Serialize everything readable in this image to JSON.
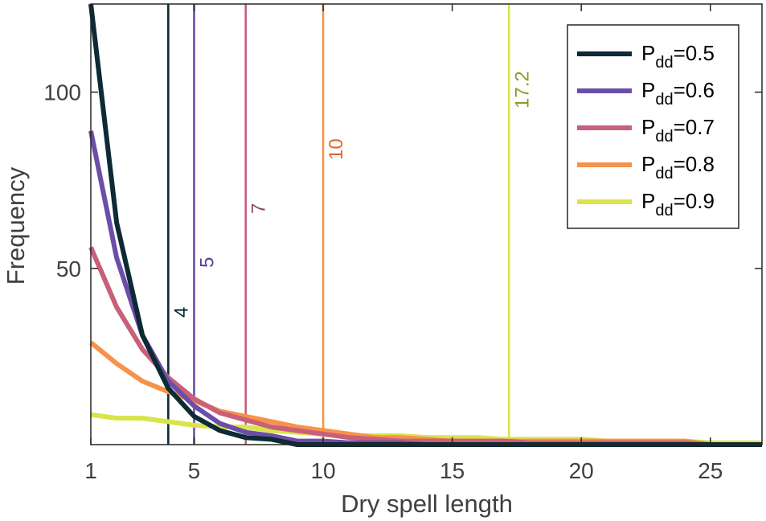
{
  "chart_data": {
    "type": "line",
    "title": "",
    "xlabel": "Dry spell length",
    "ylabel": "Frequency",
    "xlim": [
      1,
      27
    ],
    "ylim": [
      0,
      125
    ],
    "xticks": [
      1,
      5,
      10,
      15,
      20,
      25
    ],
    "yticks": [
      50,
      100
    ],
    "legend_position": "top-right",
    "series": [
      {
        "name_main": "P",
        "name_sub": "dd",
        "name_value": "=0.5",
        "color": "#0d2a35",
        "x": [
          1,
          2,
          3,
          4,
          5,
          6,
          7,
          8,
          9,
          10,
          11,
          12,
          13,
          14,
          15,
          16,
          17,
          18,
          19,
          20,
          21,
          22,
          23,
          24,
          25,
          26,
          27
        ],
        "y": [
          125,
          63,
          31,
          16,
          8,
          4,
          2,
          1.5,
          0,
          0,
          0,
          0,
          0,
          0,
          0,
          0,
          0,
          0,
          0,
          0,
          0,
          0,
          0,
          0,
          0,
          0,
          0
        ]
      },
      {
        "name_main": "P",
        "name_sub": "dd",
        "name_value": "=0.6",
        "color": "#6b4ea8",
        "x": [
          1,
          2,
          3,
          4,
          5,
          6,
          7,
          8,
          9,
          10,
          11,
          12,
          13,
          14,
          15,
          16,
          17,
          18,
          19,
          20,
          21,
          22,
          23,
          24,
          25,
          26,
          27
        ],
        "y": [
          89,
          53,
          31,
          18,
          11,
          6,
          3.5,
          2.5,
          1,
          1,
          0.5,
          0.5,
          0.5,
          0,
          0,
          0,
          0,
          0,
          0,
          0,
          0,
          0,
          0,
          0,
          0,
          0,
          0
        ]
      },
      {
        "name_main": "P",
        "name_sub": "dd",
        "name_value": "=0.7",
        "color": "#c8607a",
        "x": [
          1,
          2,
          3,
          4,
          5,
          6,
          7,
          8,
          9,
          10,
          11,
          12,
          13,
          14,
          15,
          16,
          17,
          18,
          19,
          20,
          21,
          22,
          23,
          24,
          25,
          26,
          27
        ],
        "y": [
          56,
          39,
          27,
          19,
          13,
          9,
          7,
          5,
          4,
          3,
          2,
          1.5,
          1,
          1,
          1,
          1,
          1,
          0.5,
          0.5,
          0.5,
          0.5,
          0.5,
          0.5,
          0.5,
          0,
          0,
          0
        ]
      },
      {
        "name_main": "P",
        "name_sub": "dd",
        "name_value": "=0.8",
        "color": "#f7924a",
        "x": [
          1,
          2,
          3,
          4,
          5,
          6,
          7,
          8,
          9,
          10,
          11,
          12,
          13,
          14,
          15,
          16,
          17,
          18,
          19,
          20,
          21,
          22,
          23,
          24,
          25,
          26,
          27
        ],
        "y": [
          29,
          23,
          18,
          15,
          12.5,
          9.5,
          8,
          6.5,
          5,
          4,
          3,
          2,
          2,
          1.5,
          1,
          1,
          1,
          1,
          1,
          1,
          1,
          1,
          1,
          1,
          0,
          0,
          0
        ]
      },
      {
        "name_main": "P",
        "name_sub": "dd",
        "name_value": "=0.9",
        "color": "#d9e44a",
        "x": [
          1,
          2,
          3,
          4,
          5,
          6,
          7,
          8,
          9,
          10,
          11,
          12,
          13,
          14,
          15,
          16,
          17,
          18,
          19,
          20,
          21,
          22,
          23,
          24,
          25,
          26,
          27
        ],
        "y": [
          8.5,
          7.5,
          7.5,
          6.5,
          5.5,
          5,
          5,
          4,
          3.5,
          3,
          2.5,
          2.5,
          2.5,
          2,
          2,
          2,
          1.5,
          1.5,
          1.5,
          1.5,
          1,
          1,
          1,
          1,
          0.5,
          0.5,
          0.5
        ]
      }
    ],
    "vertical_lines": [
      {
        "x": 4,
        "label": "4",
        "color": "#0d2a35",
        "label_color": "#0d2a35"
      },
      {
        "x": 5,
        "label": "5",
        "color": "#6b4ea8",
        "label_color": "#5a3e99"
      },
      {
        "x": 7,
        "label": "7",
        "color": "#c8607a",
        "label_color": "#8c4a5c"
      },
      {
        "x": 10,
        "label": "10",
        "color": "#f7924a",
        "label_color": "#d9682a"
      },
      {
        "x": 17.2,
        "label": "17.2",
        "color": "#d9e44a",
        "label_color": "#8f9a2a"
      }
    ]
  }
}
